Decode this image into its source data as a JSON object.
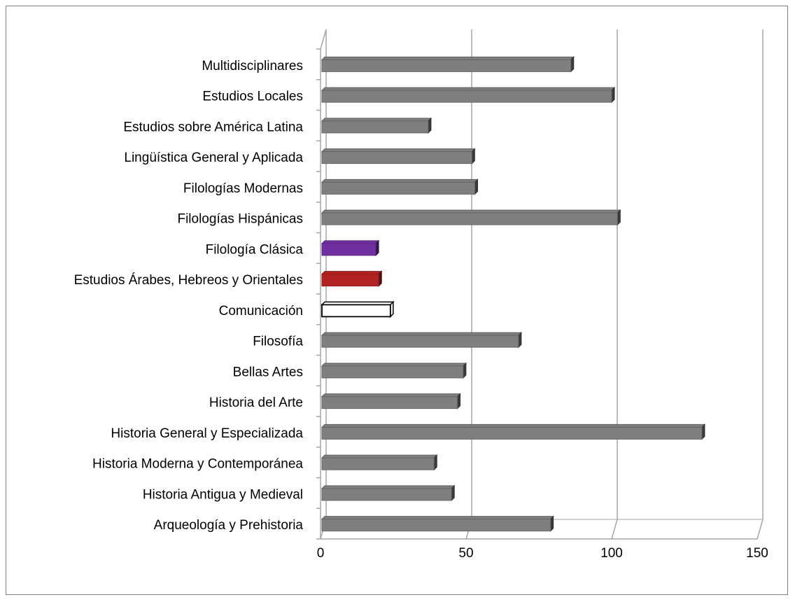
{
  "chart_data": {
    "type": "bar",
    "orientation": "horizontal",
    "style": "3d",
    "categories": [
      "Multidisciplinares",
      "Estudios Locales",
      "Estudios sobre América Latina",
      "Lingüística General y Aplicada",
      "Filologías Modernas",
      "Filologías Hispánicas",
      "Filología Clásica",
      "Estudios Árabes, Hebreos y Orientales",
      "Comunicación",
      "Filosofía",
      "Bellas Artes",
      "Historia del Arte",
      "Historia General y Especializada",
      "Historia Moderna y Contemporánea",
      "Historia Antigua y Medieval",
      "Arqueología y Prehistoria"
    ],
    "values": [
      86,
      100,
      37,
      52,
      53,
      102,
      19,
      20,
      24,
      68,
      49,
      47,
      131,
      39,
      45,
      79
    ],
    "bar_colors": [
      "#7f7f7f",
      "#7f7f7f",
      "#7f7f7f",
      "#7f7f7f",
      "#7f7f7f",
      "#7f7f7f",
      "#7030a0",
      "#b22222",
      "#ffffff",
      "#7f7f7f",
      "#7f7f7f",
      "#7f7f7f",
      "#7f7f7f",
      "#7f7f7f",
      "#7f7f7f",
      "#7f7f7f"
    ],
    "xlim": [
      0,
      150
    ],
    "xticks": [
      "0",
      "50",
      "100",
      "150"
    ],
    "grid": true,
    "legend": "none",
    "title": "",
    "xlabel": "",
    "ylabel": ""
  }
}
